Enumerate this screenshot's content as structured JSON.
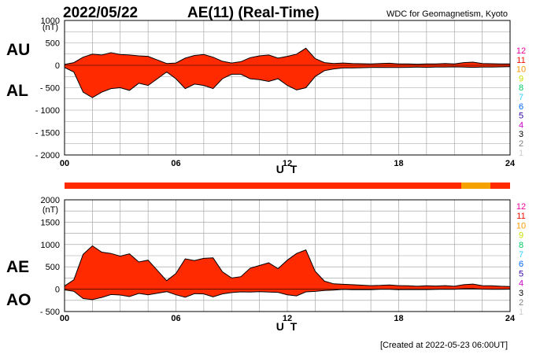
{
  "header": {
    "date": "2022/05/22",
    "title": "AE(11) (Real-Time)",
    "source": "WDC for Geomagnetism, Kyoto"
  },
  "footer": {
    "created": "[Created at 2022-05-23 06:00UT]"
  },
  "colors": {
    "fill": "#ff2a00",
    "alt_fill": "#f5a200",
    "grid": "#9a9a9a",
    "station_scale": [
      "#cfcfcf",
      "#808080",
      "#000000",
      "#cc00cc",
      "#3300aa",
      "#0066ff",
      "#33ccff",
      "#00cc66",
      "#ccdd00",
      "#ff9900",
      "#ee1100",
      "#ee0099"
    ]
  },
  "station_scale_labels": [
    "1",
    "2",
    "3",
    "4",
    "5",
    "6",
    "7",
    "8",
    "9",
    "10",
    "11",
    "12"
  ],
  "chart_data": [
    {
      "type": "area",
      "name": "AU/AL",
      "panel_label_top": "AU",
      "panel_label_bottom": "AL",
      "ylabel": "(nT)",
      "xlabel": "U T",
      "xlim": [
        0,
        24
      ],
      "ylim": [
        -2000,
        1000
      ],
      "yticks": [
        1000,
        500,
        0,
        -500,
        -1000,
        -1500,
        -2000
      ],
      "ytick_labels": [
        "1000",
        "500",
        "0",
        "- 500",
        "- 1000",
        "- 1500",
        "- 2000"
      ],
      "xticks": [
        0,
        6,
        12,
        18,
        24
      ],
      "xtick_labels": [
        "00",
        "06",
        "12",
        "18",
        "24"
      ],
      "grid": true,
      "series": [
        {
          "name": "AU",
          "x": [
            0,
            0.5,
            1,
            1.5,
            2,
            2.5,
            3,
            3.5,
            4,
            4.5,
            5,
            5.5,
            6,
            6.5,
            7,
            7.5,
            8,
            8.5,
            9,
            9.5,
            10,
            10.5,
            11,
            11.5,
            12,
            12.5,
            13,
            13.5,
            14,
            14.5,
            15,
            15.5,
            16,
            16.5,
            17,
            17.5,
            18,
            18.5,
            19,
            19.5,
            20,
            20.5,
            21,
            21.5,
            22,
            22.5,
            23,
            23.5,
            24
          ],
          "values": [
            20,
            60,
            180,
            250,
            230,
            280,
            240,
            230,
            210,
            200,
            120,
            40,
            50,
            160,
            220,
            240,
            180,
            90,
            50,
            80,
            170,
            210,
            230,
            160,
            200,
            250,
            380,
            150,
            60,
            40,
            50,
            40,
            35,
            30,
            40,
            45,
            30,
            30,
            25,
            30,
            30,
            40,
            30,
            60,
            70,
            40,
            35,
            30,
            30
          ]
        },
        {
          "name": "AL",
          "x": [
            0,
            0.5,
            1,
            1.5,
            2,
            2.5,
            3,
            3.5,
            4,
            4.5,
            5,
            5.5,
            6,
            6.5,
            7,
            7.5,
            8,
            8.5,
            9,
            9.5,
            10,
            10.5,
            11,
            11.5,
            12,
            12.5,
            13,
            13.5,
            14,
            14.5,
            15,
            15.5,
            16,
            16.5,
            17,
            17.5,
            18,
            18.5,
            19,
            19.5,
            20,
            20.5,
            21,
            21.5,
            22,
            22.5,
            23,
            23.5,
            24
          ],
          "values": [
            -50,
            -150,
            -600,
            -720,
            -600,
            -520,
            -500,
            -560,
            -400,
            -450,
            -300,
            -150,
            -300,
            -520,
            -420,
            -450,
            -520,
            -300,
            -200,
            -200,
            -300,
            -320,
            -360,
            -300,
            -450,
            -550,
            -500,
            -250,
            -120,
            -80,
            -60,
            -60,
            -55,
            -50,
            -45,
            -50,
            -50,
            -45,
            -40,
            -45,
            -40,
            -40,
            -35,
            -40,
            -45,
            -40,
            -40,
            -35,
            -30
          ]
        }
      ]
    },
    {
      "type": "area",
      "name": "AE/AO",
      "panel_label_top": "AE",
      "panel_label_bottom": "AO",
      "ylabel": "(nT)",
      "xlabel": "U T",
      "xlim": [
        0,
        24
      ],
      "ylim": [
        -500,
        2000
      ],
      "yticks": [
        2000,
        1500,
        1000,
        500,
        0,
        -500
      ],
      "ytick_labels": [
        "2000",
        "1500",
        "1000",
        "500",
        "0",
        "- 500"
      ],
      "xticks": [
        0,
        6,
        12,
        18,
        24
      ],
      "xtick_labels": [
        "00",
        "06",
        "12",
        "18",
        "24"
      ],
      "grid": true,
      "series": [
        {
          "name": "AE",
          "x": [
            0,
            0.5,
            1,
            1.5,
            2,
            2.5,
            3,
            3.5,
            4,
            4.5,
            5,
            5.5,
            6,
            6.5,
            7,
            7.5,
            8,
            8.5,
            9,
            9.5,
            10,
            10.5,
            11,
            11.5,
            12,
            12.5,
            13,
            13.5,
            14,
            14.5,
            15,
            15.5,
            16,
            16.5,
            17,
            17.5,
            18,
            18.5,
            19,
            19.5,
            20,
            20.5,
            21,
            21.5,
            22,
            22.5,
            23,
            23.5,
            24
          ],
          "values": [
            70,
            210,
            780,
            970,
            830,
            800,
            740,
            790,
            610,
            650,
            420,
            190,
            350,
            680,
            640,
            690,
            700,
            390,
            250,
            280,
            470,
            530,
            590,
            460,
            650,
            800,
            880,
            400,
            180,
            120,
            110,
            100,
            90,
            80,
            85,
            95,
            80,
            75,
            65,
            75,
            70,
            80,
            65,
            100,
            115,
            80,
            75,
            65,
            60
          ]
        },
        {
          "name": "AO",
          "x": [
            0,
            0.5,
            1,
            1.5,
            2,
            2.5,
            3,
            3.5,
            4,
            4.5,
            5,
            5.5,
            6,
            6.5,
            7,
            7.5,
            8,
            8.5,
            9,
            9.5,
            10,
            10.5,
            11,
            11.5,
            12,
            12.5,
            13,
            13.5,
            14,
            14.5,
            15,
            15.5,
            16,
            16.5,
            17,
            17.5,
            18,
            18.5,
            19,
            19.5,
            20,
            20.5,
            21,
            21.5,
            22,
            22.5,
            23,
            23.5,
            24
          ],
          "values": [
            -15,
            -45,
            -210,
            -235,
            -185,
            -120,
            -130,
            -165,
            -95,
            -125,
            -90,
            -55,
            -125,
            -180,
            -100,
            -105,
            -170,
            -105,
            -75,
            -60,
            -65,
            -55,
            -65,
            -70,
            -125,
            -150,
            -60,
            -50,
            -30,
            -20,
            -5,
            -10,
            -10,
            -10,
            -3,
            -3,
            -10,
            -8,
            -8,
            -8,
            -5,
            0,
            -3,
            10,
            13,
            0,
            -3,
            -3,
            0
          ]
        }
      ]
    }
  ]
}
